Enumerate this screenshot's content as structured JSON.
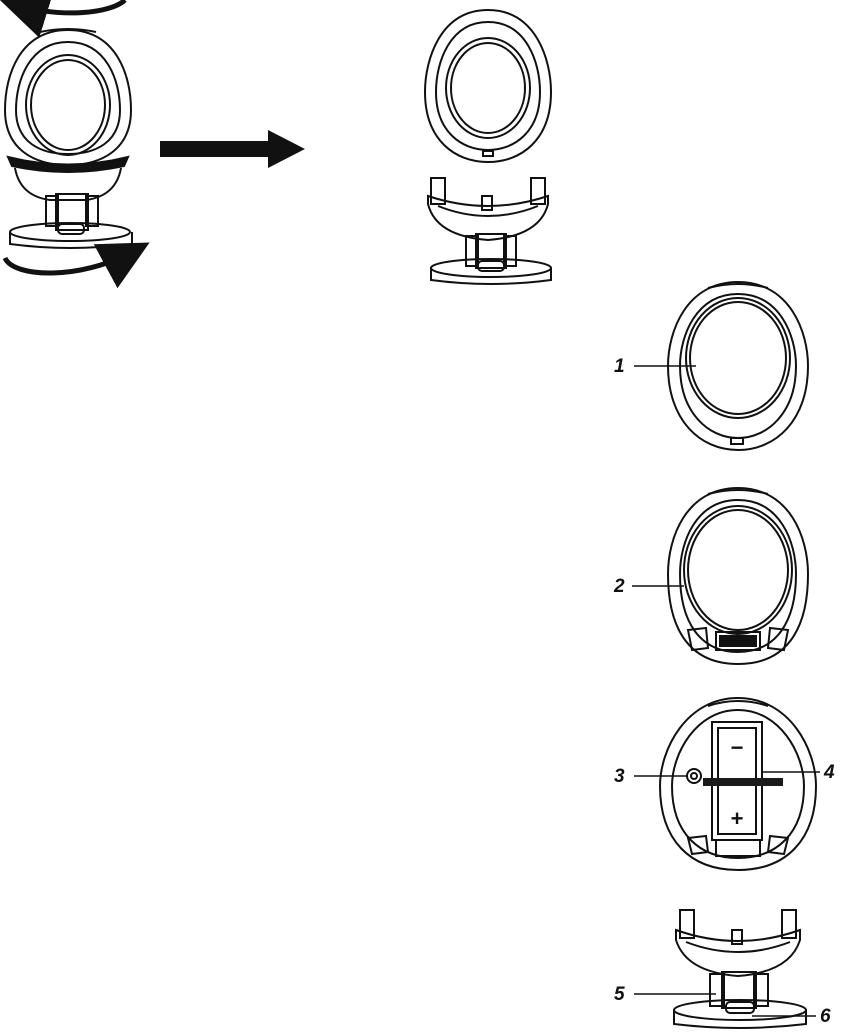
{
  "colors": {
    "ink": "#111111",
    "paper": "#ffffff",
    "battery_band": "#1a1a1a"
  },
  "callouts": [
    {
      "id": "1",
      "label": "1"
    },
    {
      "id": "2",
      "label": "2"
    },
    {
      "id": "3",
      "label": "3"
    },
    {
      "id": "4",
      "label": "4"
    },
    {
      "id": "5",
      "label": "5"
    },
    {
      "id": "6",
      "label": "6"
    }
  ],
  "battery": {
    "minus_symbol": "−",
    "plus_symbol": "+"
  },
  "icons": [
    "rotate-arrow-icon",
    "direction-arrow-icon"
  ]
}
